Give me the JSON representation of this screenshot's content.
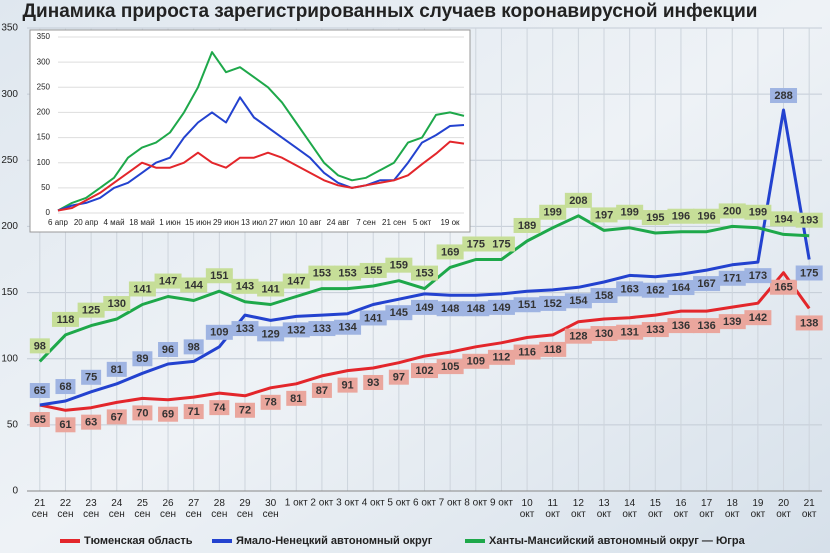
{
  "chart_data": [
    {
      "type": "line",
      "title": "Динамика прироста зарегистрированных случаев коронавирусной инфекции",
      "categories": [
        "21\nсен",
        "22\nсен",
        "23\nсен",
        "24\nсен",
        "25\nсен",
        "26\nсен",
        "27\nсен",
        "28\nсен",
        "29\nсен",
        "30\nсен",
        "1 окт",
        "2 окт",
        "3 окт",
        "4 окт",
        "5 окт",
        "6 окт",
        "7 окт",
        "8 окт",
        "9 окт",
        "10\nокт",
        "11\nокт",
        "12\nокт",
        "13\nокт",
        "14\nокт",
        "15\nокт",
        "16\nокт",
        "17\nокт",
        "18\nокт",
        "19\nокт",
        "20\nокт",
        "21\nокт"
      ],
      "series": [
        {
          "name": "Тюменская область",
          "color": "#e3262b",
          "values": [
            65,
            61,
            63,
            67,
            70,
            69,
            71,
            74,
            72,
            78,
            81,
            87,
            91,
            93,
            97,
            102,
            105,
            109,
            112,
            116,
            118,
            128,
            130,
            131,
            133,
            136,
            136,
            139,
            142,
            165,
            138
          ]
        },
        {
          "name": "Ямало-Ненецкий автономный округ",
          "color": "#2342cf",
          "values": [
            65,
            68,
            75,
            81,
            89,
            96,
            98,
            109,
            133,
            129,
            132,
            133,
            134,
            141,
            145,
            149,
            148,
            148,
            149,
            151,
            152,
            154,
            158,
            163,
            162,
            164,
            167,
            171,
            173,
            288,
            175
          ]
        },
        {
          "name": "Ханты-Мансийский автономный округ — Югра",
          "color": "#1ea84a",
          "values": [
            98,
            118,
            125,
            130,
            141,
            147,
            144,
            151,
            143,
            141,
            147,
            153,
            153,
            155,
            159,
            153,
            169,
            175,
            175,
            189,
            199,
            208,
            197,
            199,
            195,
            196,
            196,
            200,
            199,
            194,
            193
          ]
        }
      ],
      "ylim": [
        0,
        350
      ],
      "yticks": [
        0,
        50,
        100,
        150,
        200,
        250,
        300,
        350
      ],
      "grid": true
    },
    {
      "type": "line",
      "categories": [
        "6 апр",
        null,
        "20 апр",
        null,
        "4 май",
        null,
        "18 май",
        null,
        "1 июн",
        null,
        "15 июн",
        null,
        "29 июн",
        null,
        "13 июл",
        null,
        "27 июл",
        null,
        "10 авг",
        null,
        "24 авг",
        null,
        "7 сен",
        null,
        "21 сен",
        null,
        "5 окт",
        null,
        "19 ок",
        null
      ],
      "series": [
        {
          "color": "#1ea84a",
          "values": [
            5,
            20,
            30,
            50,
            70,
            110,
            130,
            140,
            160,
            200,
            250,
            320,
            280,
            290,
            270,
            250,
            220,
            180,
            140,
            100,
            75,
            65,
            70,
            85,
            100,
            140,
            150,
            195,
            200,
            193
          ]
        },
        {
          "color": "#2342cf",
          "values": [
            5,
            15,
            20,
            30,
            50,
            60,
            80,
            100,
            110,
            150,
            180,
            200,
            180,
            230,
            190,
            170,
            150,
            130,
            110,
            80,
            60,
            50,
            55,
            65,
            65,
            100,
            140,
            155,
            173,
            175
          ]
        },
        {
          "color": "#e3262b",
          "values": [
            5,
            10,
            25,
            40,
            60,
            80,
            100,
            90,
            90,
            100,
            120,
            100,
            90,
            110,
            110,
            120,
            110,
            95,
            80,
            65,
            55,
            50,
            55,
            60,
            65,
            75,
            97,
            118,
            142,
            138
          ]
        }
      ],
      "ylim": [
        0,
        350
      ],
      "yticks": [
        0,
        50,
        100,
        150,
        200,
        250,
        300,
        350
      ],
      "grid": true
    }
  ]
}
